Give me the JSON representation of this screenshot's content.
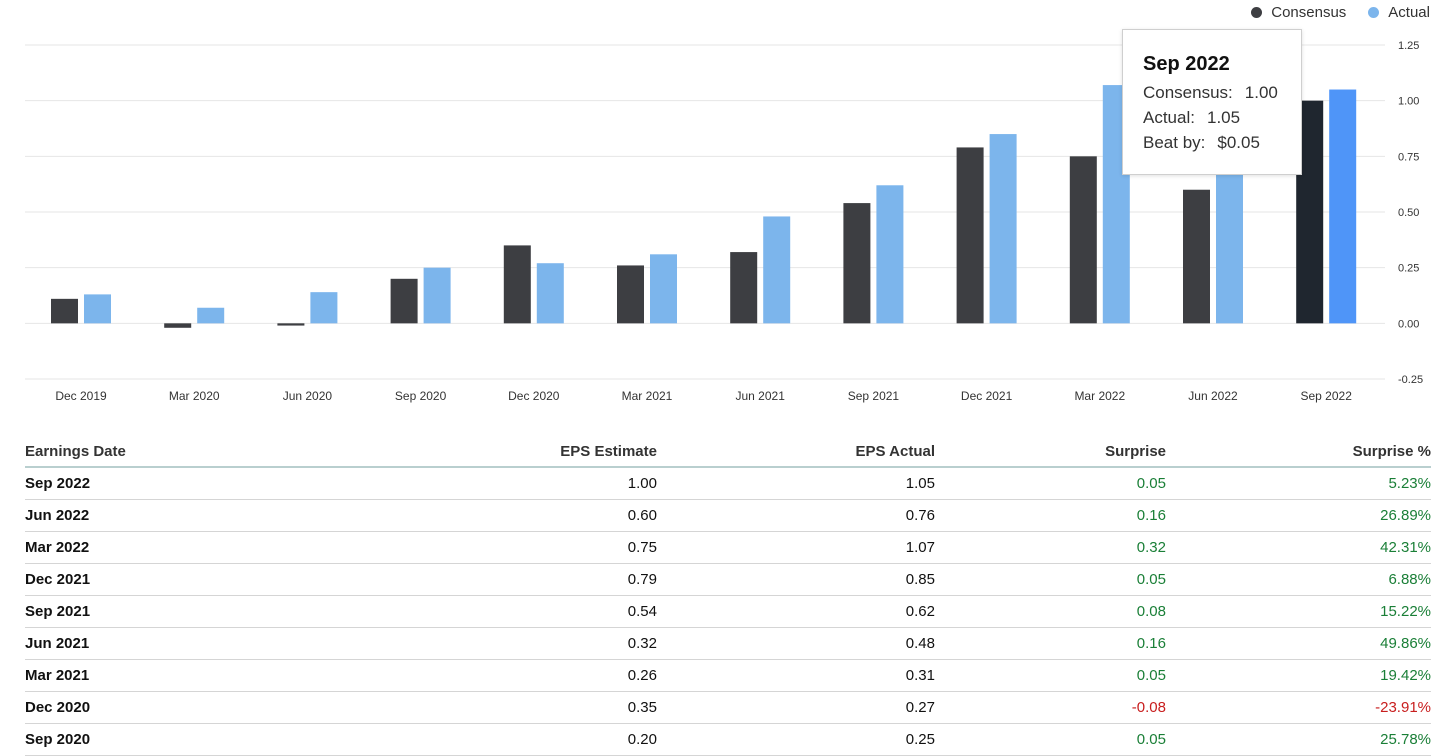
{
  "chart_data": {
    "type": "bar",
    "categories": [
      "Dec 2019",
      "Mar 2020",
      "Jun 2020",
      "Sep 2020",
      "Dec 2020",
      "Mar 2021",
      "Jun 2021",
      "Sep 2021",
      "Dec 2021",
      "Mar 2022",
      "Jun 2022",
      "Sep 2022"
    ],
    "series": [
      {
        "name": "Consensus",
        "values": [
          0.11,
          -0.02,
          -0.01,
          0.2,
          0.35,
          0.26,
          0.32,
          0.54,
          0.79,
          0.75,
          0.6,
          1.0
        ]
      },
      {
        "name": "Actual",
        "values": [
          0.13,
          0.07,
          0.14,
          0.25,
          0.27,
          0.31,
          0.48,
          0.62,
          0.85,
          1.07,
          0.76,
          1.05
        ]
      }
    ],
    "ylim": [
      -0.25,
      1.25
    ],
    "yticks": [
      "1.25",
      "1.00",
      "0.75",
      "0.50",
      "0.25",
      "0.00",
      "-0.25"
    ],
    "ytick_values": [
      1.25,
      1.0,
      0.75,
      0.5,
      0.25,
      0.0,
      -0.25
    ],
    "grid": true,
    "legend": "top-right",
    "highlight_index": 11,
    "colors": {
      "consensus": "#3d3e42",
      "actual": "#7cb5ec",
      "consensus_highlight": "#1f262f",
      "actual_highlight": "#4f95f8",
      "grid": "#e6e6e6",
      "axis_text": "#333333"
    }
  },
  "tooltip": {
    "title": "Sep 2022",
    "consensus_label": "Consensus:",
    "consensus_value": "1.00",
    "actual_label": "Actual:",
    "actual_value": "1.05",
    "beat_label": "Beat by:",
    "beat_value": "$0.05"
  },
  "table": {
    "headers": [
      "Earnings Date",
      "EPS Estimate",
      "EPS Actual",
      "Surprise",
      "Surprise %"
    ],
    "rows": [
      {
        "date": "Sep 2022",
        "estimate": "1.00",
        "actual": "1.05",
        "surprise": "0.05",
        "surprise_pct": "5.23%",
        "positive": true
      },
      {
        "date": "Jun 2022",
        "estimate": "0.60",
        "actual": "0.76",
        "surprise": "0.16",
        "surprise_pct": "26.89%",
        "positive": true
      },
      {
        "date": "Mar 2022",
        "estimate": "0.75",
        "actual": "1.07",
        "surprise": "0.32",
        "surprise_pct": "42.31%",
        "positive": true
      },
      {
        "date": "Dec 2021",
        "estimate": "0.79",
        "actual": "0.85",
        "surprise": "0.05",
        "surprise_pct": "6.88%",
        "positive": true
      },
      {
        "date": "Sep 2021",
        "estimate": "0.54",
        "actual": "0.62",
        "surprise": "0.08",
        "surprise_pct": "15.22%",
        "positive": true
      },
      {
        "date": "Jun 2021",
        "estimate": "0.32",
        "actual": "0.48",
        "surprise": "0.16",
        "surprise_pct": "49.86%",
        "positive": true
      },
      {
        "date": "Mar 2021",
        "estimate": "0.26",
        "actual": "0.31",
        "surprise": "0.05",
        "surprise_pct": "19.42%",
        "positive": true
      },
      {
        "date": "Dec 2020",
        "estimate": "0.35",
        "actual": "0.27",
        "surprise": "-0.08",
        "surprise_pct": "-23.91%",
        "positive": false
      },
      {
        "date": "Sep 2020",
        "estimate": "0.20",
        "actual": "0.25",
        "surprise": "0.05",
        "surprise_pct": "25.78%",
        "positive": true
      }
    ]
  }
}
